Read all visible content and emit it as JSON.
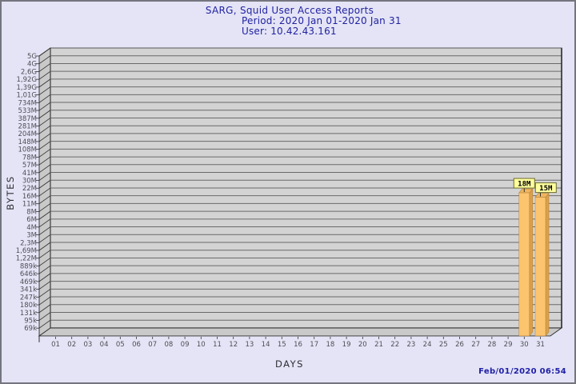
{
  "header": {
    "title": "SARG, Squid User Access Reports",
    "period": "Period: 2020 Jan 01-2020 Jan 31",
    "user": "User: 10.42.43.161",
    "text_color": "#2222a2"
  },
  "footer": {
    "timestamp": "Feb/01/2020 06:54"
  },
  "chart_data": {
    "type": "bar",
    "title": "SARG, Squid User Access Reports",
    "subtitle": "Period: 2020 Jan 01-2020 Jan 31",
    "user": "User: 10.42.43.161",
    "xlabel": "DAYS",
    "ylabel": "BYTES",
    "y_scale": "log",
    "y_range_bytes": [
      69000,
      5000000000
    ],
    "y_tick_labels": [
      "5G",
      "4G",
      "2,6G",
      "1,92G",
      "1,39G",
      "1,01G",
      "734M",
      "533M",
      "387M",
      "281M",
      "204M",
      "148M",
      "108M",
      "78M",
      "57M",
      "41M",
      "30M",
      "22M",
      "16M",
      "11M",
      "8M",
      "6M",
      "4M",
      "3M",
      "2,3M",
      "1,69M",
      "1,22M",
      "889k",
      "646k",
      "469k",
      "341k",
      "247k",
      "180k",
      "131k",
      "95k",
      "69k"
    ],
    "x_tick_labels": [
      "01",
      "02",
      "03",
      "04",
      "05",
      "06",
      "07",
      "08",
      "09",
      "10",
      "11",
      "12",
      "13",
      "14",
      "15",
      "16",
      "17",
      "18",
      "19",
      "20",
      "21",
      "22",
      "23",
      "24",
      "25",
      "26",
      "27",
      "28",
      "29",
      "30",
      "31"
    ],
    "bars": [
      {
        "day": "30",
        "value_label": "18M",
        "bytes": 18000000
      },
      {
        "day": "31",
        "value_label": "15M",
        "bytes": 15000000
      }
    ],
    "legend": null,
    "grid": "horizontal",
    "colors": {
      "page_bg": "#e4e4f6",
      "plot_bg": "#d3d3d3",
      "wall": "#c9c9c9",
      "grid_line": "#6a6a6a",
      "frame": "#2f2f2f",
      "tick_text": "#4e4e56",
      "bar_front": "#fcc46f",
      "bar_side": "#dca04a",
      "bar_top": "#f0b55e",
      "bar_edge": "#b5833a",
      "value_box_bg": "#ffff9e",
      "value_box_border": "#6d6d2e",
      "value_box_text": "#000000"
    }
  }
}
